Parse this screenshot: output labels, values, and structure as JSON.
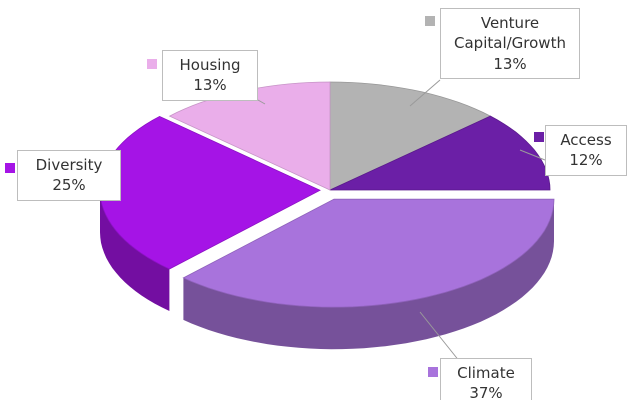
{
  "chart_data": {
    "type": "pie",
    "categories": [
      "Venture Capital/Growth",
      "Access",
      "Climate",
      "Diversity",
      "Housing"
    ],
    "values": [
      13,
      12,
      37,
      25,
      13
    ],
    "value_labels": [
      "13%",
      "12%",
      "37%",
      "25%",
      "13%"
    ],
    "colors": [
      "#b3b3b3",
      "#6b1fa6",
      "#a873dc",
      "#a514e6",
      "#eaaeea"
    ],
    "legend": "callouts"
  }
}
